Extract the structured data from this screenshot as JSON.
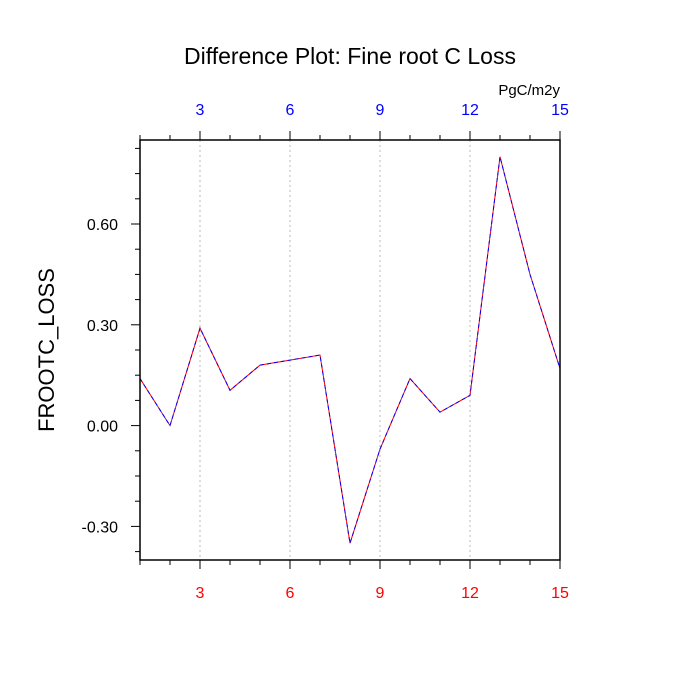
{
  "chart_data": {
    "type": "line",
    "title": "Difference Plot: Fine root C Loss",
    "units": "PgC/m2y",
    "ylabel": "FROOTC_LOSS",
    "xlabel": "",
    "xlim": [
      1,
      15
    ],
    "ylim": [
      -0.4,
      0.85
    ],
    "x_ticks": [
      3,
      6,
      9,
      12,
      15
    ],
    "y_ticks": [
      -0.3,
      0.0,
      0.3,
      0.6
    ],
    "y_tick_labels": [
      "-0.30",
      "0.00",
      "0.30",
      "0.60"
    ],
    "x_tick_labels": [
      "3",
      "6",
      "9",
      "12",
      "15"
    ],
    "grid": "vertical dotted",
    "colors": {
      "top_ticks": "#0000ff",
      "bottom_ticks": "#ff0000",
      "line_a": "#ff0000",
      "line_b": "#0000ff"
    },
    "x": [
      1,
      2,
      3,
      4,
      5,
      6,
      7,
      8,
      9,
      10,
      11,
      12,
      13,
      14,
      15
    ],
    "series": [
      {
        "values": [
          0.14,
          0.0,
          0.29,
          0.105,
          0.18,
          0.195,
          0.21,
          -0.35,
          -0.07,
          0.14,
          0.04,
          0.09,
          0.8,
          0.45,
          0.17
        ]
      },
      {
        "values": [
          0.14,
          0.0,
          0.29,
          0.105,
          0.18,
          0.195,
          0.21,
          -0.35,
          -0.07,
          0.14,
          0.04,
          0.09,
          0.8,
          0.45,
          0.17
        ]
      }
    ]
  }
}
